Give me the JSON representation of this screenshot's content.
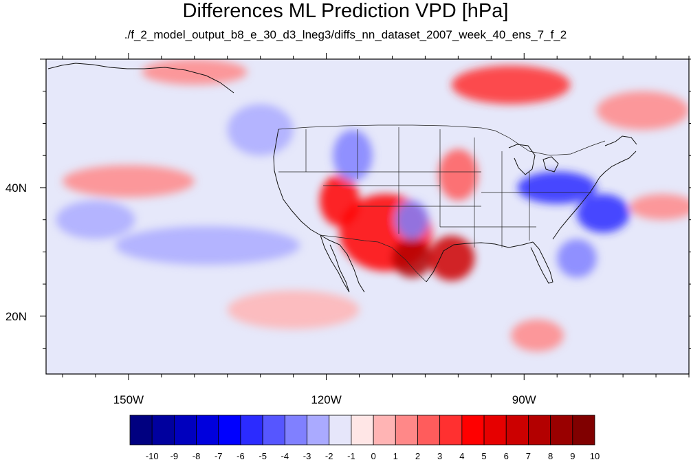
{
  "title": "Differences ML Prediction VPD [hPa]",
  "subtitle": "./f_2_model_output_b8_e_30_d3_lneg3/diffs_nn_dataset_2007_week_40_ens_7_f_2",
  "map": {
    "lon_range": [
      -162.5,
      -65
    ],
    "lat_range": [
      11,
      60
    ],
    "lon_ticks": [
      {
        "value": -150,
        "label": "150W"
      },
      {
        "value": -120,
        "label": "120W"
      },
      {
        "value": -90,
        "label": "90W"
      }
    ],
    "lat_ticks": [
      {
        "value": 40,
        "label": "40N"
      },
      {
        "value": 20,
        "label": "20N"
      }
    ],
    "background_color": "#e6e8fa"
  },
  "colorbar": {
    "labels": [
      "-10",
      "-9",
      "-8",
      "-7",
      "-6",
      "-5",
      "-4",
      "-3",
      "-2",
      "-1",
      "0",
      "1",
      "2",
      "3",
      "4",
      "5",
      "6",
      "7",
      "8",
      "9",
      "10"
    ],
    "colors": [
      "#000080",
      "#00009e",
      "#0000be",
      "#0000dd",
      "#0000ff",
      "#2b2bff",
      "#5656ff",
      "#8080ff",
      "#aaaaff",
      "#e6e6fa",
      "#ffe6e6",
      "#ffb4b4",
      "#ff8888",
      "#ff5c5c",
      "#ff3030",
      "#ff0000",
      "#e60000",
      "#cc0000",
      "#b30000",
      "#990000",
      "#800000"
    ]
  },
  "features": [
    {
      "name": "us-southwest",
      "level": 5,
      "lon": -111,
      "lat": 33,
      "rlon": 7,
      "rlat": 6
    },
    {
      "name": "mexico-sierra",
      "level": 8,
      "lon": -107,
      "lat": 29,
      "rlon": 3,
      "rlat": 3
    },
    {
      "name": "texas",
      "level": 7,
      "lon": -101,
      "lat": 29,
      "rlon": 3.5,
      "rlat": 3.5
    },
    {
      "name": "california",
      "level": 5,
      "lon": -118,
      "lat": 38,
      "rlon": 3,
      "rlat": 4
    },
    {
      "name": "great-plains",
      "level": 3,
      "lon": -100,
      "lat": 42,
      "rlon": 3,
      "rlat": 4
    },
    {
      "name": "canada-north",
      "level": 4,
      "lon": -92,
      "lat": 56,
      "rlon": 9,
      "rlat": 3
    },
    {
      "name": "ohio-valley",
      "level": -5,
      "lon": -85,
      "lat": 40,
      "rlon": 6,
      "rlat": 2.5
    },
    {
      "name": "appalachia",
      "level": -5,
      "lon": -78,
      "lat": 36,
      "rlon": 4,
      "rlat": 3
    },
    {
      "name": "florida",
      "level": -3,
      "lon": -82,
      "lat": 29,
      "rlon": 3,
      "rlat": 3
    },
    {
      "name": "utah-arizona",
      "level": -3,
      "lon": -107,
      "lat": 35,
      "rlon": 2.5,
      "rlat": 3
    },
    {
      "name": "idaho",
      "level": -3,
      "lon": -116,
      "lat": 45,
      "rlon": 3,
      "rlat": 4
    },
    {
      "name": "pacific-band",
      "level": -2,
      "lon": -138,
      "lat": 31,
      "rlon": 14,
      "rlat": 3
    },
    {
      "name": "pacific-band-west",
      "level": -2,
      "lon": -155,
      "lat": 35,
      "rlon": 6,
      "rlat": 3
    },
    {
      "name": "pacific-north",
      "level": -2,
      "lon": -130,
      "lat": 49,
      "rlon": 5,
      "rlat": 4
    },
    {
      "name": "pacific-west-warm",
      "level": 2,
      "lon": -150,
      "lat": 41,
      "rlon": 10,
      "rlat": 2.5
    },
    {
      "name": "atlantic-warm",
      "level": 2,
      "lon": -69,
      "lat": 37,
      "rlon": 5,
      "rlat": 2
    },
    {
      "name": "subtropic-pacific-warm",
      "level": 1,
      "lon": -125,
      "lat": 21,
      "rlon": 10,
      "rlat": 3
    },
    {
      "name": "caribbean",
      "level": 2,
      "lon": -88,
      "lat": 17,
      "rlon": 4,
      "rlat": 2.5
    },
    {
      "name": "alaska-coast",
      "level": 2,
      "lon": -140,
      "lat": 58,
      "rlon": 8,
      "rlat": 2
    },
    {
      "name": "canada-east",
      "level": 2,
      "lon": -72,
      "lat": 52,
      "rlon": 7,
      "rlat": 3
    }
  ]
}
